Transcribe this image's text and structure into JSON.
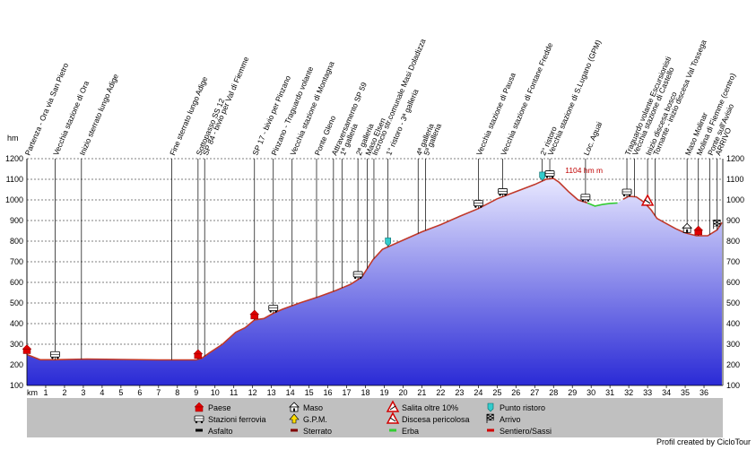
{
  "chart_data": {
    "type": "area",
    "unit_y": "hm",
    "unit_x": "km",
    "ylim": [
      100,
      1200
    ],
    "yticks": [
      100,
      200,
      300,
      400,
      500,
      600,
      700,
      800,
      900,
      1000,
      1100,
      1200
    ],
    "xlim": [
      0,
      37
    ],
    "xticks": [
      1,
      2,
      3,
      4,
      5,
      6,
      7,
      8,
      9,
      10,
      11,
      12,
      13,
      14,
      15,
      16,
      17,
      18,
      19,
      20,
      21,
      22,
      23,
      24,
      25,
      26,
      27,
      28,
      29,
      30,
      31,
      32,
      33,
      34,
      35,
      36
    ],
    "grid": true,
    "max_annotation": "1104 hm m",
    "profile": [
      {
        "x": 0,
        "y": 250
      },
      {
        "x": 0.7,
        "y": 225
      },
      {
        "x": 1.5,
        "y": 225
      },
      {
        "x": 3.2,
        "y": 228
      },
      {
        "x": 5,
        "y": 226
      },
      {
        "x": 7,
        "y": 224
      },
      {
        "x": 9,
        "y": 224
      },
      {
        "x": 9.3,
        "y": 232
      },
      {
        "x": 9.7,
        "y": 258
      },
      {
        "x": 10.4,
        "y": 300
      },
      {
        "x": 11.1,
        "y": 358
      },
      {
        "x": 11.6,
        "y": 380
      },
      {
        "x": 12.1,
        "y": 418
      },
      {
        "x": 12.6,
        "y": 425
      },
      {
        "x": 13.1,
        "y": 450
      },
      {
        "x": 13.6,
        "y": 470
      },
      {
        "x": 14.5,
        "y": 500
      },
      {
        "x": 15.5,
        "y": 530
      },
      {
        "x": 16.4,
        "y": 560
      },
      {
        "x": 17.2,
        "y": 590
      },
      {
        "x": 17.8,
        "y": 625
      },
      {
        "x": 18.4,
        "y": 710
      },
      {
        "x": 18.9,
        "y": 760
      },
      {
        "x": 20,
        "y": 805
      },
      {
        "x": 21,
        "y": 845
      },
      {
        "x": 22,
        "y": 880
      },
      {
        "x": 23,
        "y": 920
      },
      {
        "x": 24,
        "y": 958
      },
      {
        "x": 25,
        "y": 1005
      },
      {
        "x": 26,
        "y": 1040
      },
      {
        "x": 27,
        "y": 1075
      },
      {
        "x": 27.6,
        "y": 1100
      },
      {
        "x": 28,
        "y": 1104
      },
      {
        "x": 28.3,
        "y": 1085
      },
      {
        "x": 28.8,
        "y": 1040
      },
      {
        "x": 29.3,
        "y": 1000
      },
      {
        "x": 29.8,
        "y": 985
      },
      {
        "x": 30.2,
        "y": 970
      },
      {
        "x": 30.6,
        "y": 978
      },
      {
        "x": 31,
        "y": 983
      },
      {
        "x": 31.4,
        "y": 985
      },
      {
        "x": 31.7,
        "y": 1003
      },
      {
        "x": 32,
        "y": 1018
      },
      {
        "x": 32.4,
        "y": 1015
      },
      {
        "x": 32.8,
        "y": 990
      },
      {
        "x": 33.2,
        "y": 950
      },
      {
        "x": 33.5,
        "y": 910
      },
      {
        "x": 33.9,
        "y": 890
      },
      {
        "x": 34.5,
        "y": 860
      },
      {
        "x": 35,
        "y": 840
      },
      {
        "x": 35.6,
        "y": 826
      },
      {
        "x": 36.2,
        "y": 826
      },
      {
        "x": 36.7,
        "y": 855
      },
      {
        "x": 36.95,
        "y": 890
      }
    ],
    "surface_segments": [
      {
        "from": 0,
        "to": 29.8,
        "surface": "Sterrato",
        "color": "#c0392b"
      },
      {
        "from": 29.8,
        "to": 31.6,
        "surface": "Erba",
        "color": "#33cc33"
      },
      {
        "from": 31.6,
        "to": 36.95,
        "surface": "Sterrato",
        "color": "#c0392b"
      }
    ],
    "waypoints": [
      {
        "x": 0,
        "label": "Partenza - Ora via San Pietro",
        "symbol": "paese"
      },
      {
        "x": 1.5,
        "label": "Vecchia stazione di Ora",
        "symbol": "stazione"
      },
      {
        "x": 2.9,
        "label": "Inizio sterrato lungo Adige",
        "symbol": ""
      },
      {
        "x": 7.7,
        "label": "Fine sterrato lungo Adige",
        "symbol": ""
      },
      {
        "x": 9.1,
        "label": "Sottopasso SS 12",
        "symbol": "paese"
      },
      {
        "x": 9.45,
        "label": "SP 84 - bivio per Val di Fiemme",
        "symbol": ""
      },
      {
        "x": 12.1,
        "label": "SP 17 - bivio per Pinzano",
        "symbol": "paese"
      },
      {
        "x": 13.1,
        "label": "Pinzano - Traguardo volante",
        "symbol": "stazione"
      },
      {
        "x": 14.1,
        "label": "Vecchia stazione di Montagna",
        "symbol": ""
      },
      {
        "x": 15.4,
        "label": "Ponte Gleno",
        "symbol": ""
      },
      {
        "x": 16.3,
        "label": "Attraversamento SP 59",
        "symbol": ""
      },
      {
        "x": 16.75,
        "label": "1ª galleria",
        "symbol": ""
      },
      {
        "x": 17.6,
        "label": "2ª galleria",
        "symbol": "stazione"
      },
      {
        "x": 18.1,
        "label": "Maso Elsen",
        "symbol": ""
      },
      {
        "x": 18.45,
        "label": "Incrocio str.comunale Masi Doladizza",
        "symbol": ""
      },
      {
        "x": 19.2,
        "label": "1° ristoro - 3ª galleria",
        "symbol": "ristoro"
      },
      {
        "x": 20.8,
        "label": "4ª galleria",
        "symbol": ""
      },
      {
        "x": 21.2,
        "label": "5ª galleria",
        "symbol": ""
      },
      {
        "x": 24,
        "label": "Vecchia stazione di Pausa",
        "symbol": "stazione"
      },
      {
        "x": 25.3,
        "label": "Vecchia stazione di Fontane Fredde",
        "symbol": "stazione"
      },
      {
        "x": 27.4,
        "label": "2° ristoro",
        "symbol": "ristoro"
      },
      {
        "x": 27.8,
        "label": "Vecchia stazione di S.Lugano (GPM)",
        "symbol": "stazione"
      },
      {
        "x": 29.7,
        "label": "Loc. Aguai",
        "symbol": "stazione"
      },
      {
        "x": 31.9,
        "label": "Traguardo volante Escursionisti",
        "symbol": "stazione"
      },
      {
        "x": 32.3,
        "label": "Vecchia stazione di Castello",
        "symbol": ""
      },
      {
        "x": 33,
        "label": "Inizio discesa bosco",
        "symbol": "pericolo"
      },
      {
        "x": 33.4,
        "label": "Tornante - inizio discesa Val Tossega",
        "symbol": ""
      },
      {
        "x": 35.1,
        "label": "Maso Molinar",
        "symbol": "maso"
      },
      {
        "x": 35.7,
        "label": "Molina di Fiemme (centro)",
        "symbol": "paese"
      },
      {
        "x": 36.3,
        "label": "Ponte sull'Avisio",
        "symbol": ""
      },
      {
        "x": 36.7,
        "label": "ARRIVO",
        "symbol": "arrivo"
      }
    ],
    "legend": [
      {
        "label": "Paese",
        "symbol": "paese"
      },
      {
        "label": "Maso",
        "symbol": "maso"
      },
      {
        "label": "Salita oltre 10%",
        "symbol": "salita"
      },
      {
        "label": "Punto ristoro",
        "symbol": "ristoro"
      },
      {
        "label": "Stazioni ferrovia",
        "symbol": "stazione"
      },
      {
        "label": "G.P.M.",
        "symbol": "gpm"
      },
      {
        "label": "Discesa pericolosa",
        "symbol": "pericolo"
      },
      {
        "label": "Arrivo",
        "symbol": "arrivo"
      },
      {
        "label": "Asfalto",
        "symbol": "asfalto"
      },
      {
        "label": "Sterrato",
        "symbol": "sterrato"
      },
      {
        "label": "Erba",
        "symbol": "erba"
      },
      {
        "label": "Sentiero/Sassi",
        "symbol": "sentiero"
      }
    ],
    "colors": {
      "fill_top": "#e8e8ff",
      "fill_bottom": "#2a2ad6",
      "legend_bg": "#c0c0c0"
    }
  },
  "credit": "Profil created by CicloTour"
}
